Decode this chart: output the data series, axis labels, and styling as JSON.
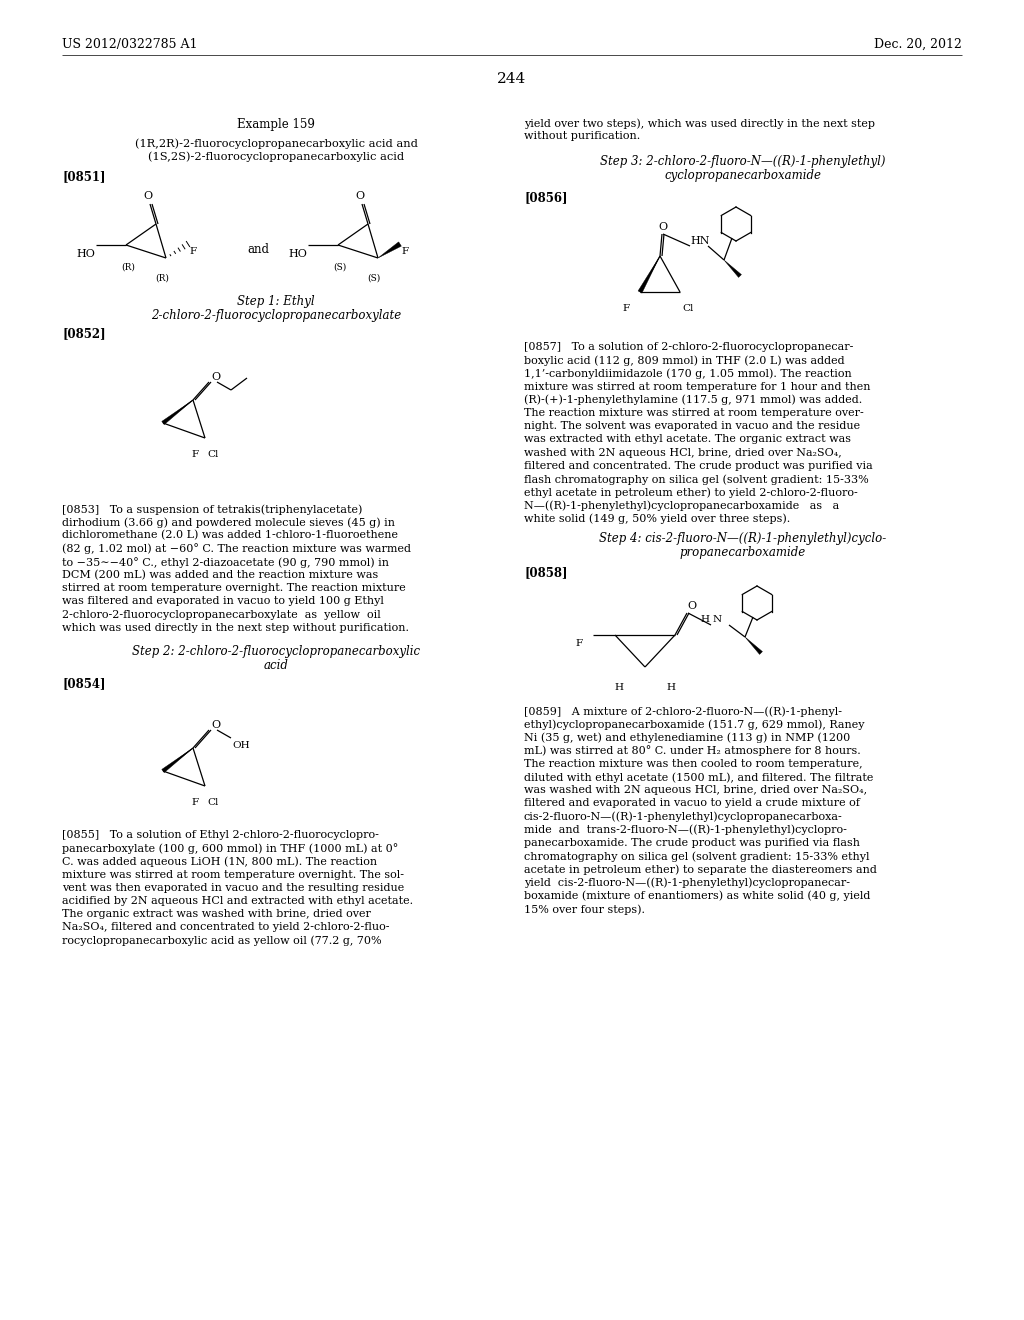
{
  "page_number": "244",
  "header_left": "US 2012/0322785 A1",
  "header_right": "Dec. 20, 2012",
  "background_color": "#ffffff",
  "text_color": "#000000"
}
